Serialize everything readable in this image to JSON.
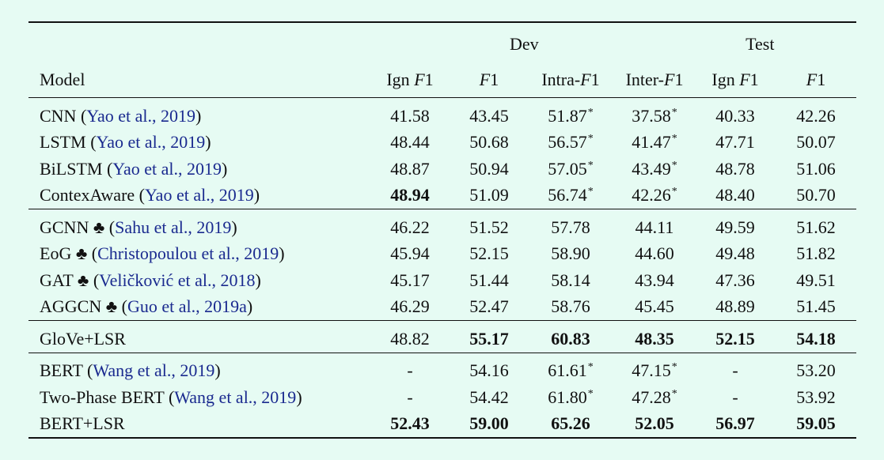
{
  "columns": {
    "model": "Model",
    "group_dev": "Dev",
    "group_test": "Test",
    "sub": [
      "Ign F1",
      "F1",
      "Intra-F1",
      "Inter-F1",
      "Ign F1",
      "F1"
    ]
  },
  "sections": [
    [
      {
        "name": "CNN",
        "cite": "Yao et al., 2019",
        "vals": [
          "41.58",
          "43.45",
          "51.87",
          "37.58",
          "40.33",
          "42.26"
        ],
        "star": [
          false,
          false,
          true,
          true,
          false,
          false
        ],
        "bold": [
          false,
          false,
          false,
          false,
          false,
          false
        ]
      },
      {
        "name": "LSTM",
        "cite": "Yao et al., 2019",
        "vals": [
          "48.44",
          "50.68",
          "56.57",
          "41.47",
          "47.71",
          "50.07"
        ],
        "star": [
          false,
          false,
          true,
          true,
          false,
          false
        ],
        "bold": [
          false,
          false,
          false,
          false,
          false,
          false
        ]
      },
      {
        "name": "BiLSTM",
        "cite": "Yao et al., 2019",
        "vals": [
          "48.87",
          "50.94",
          "57.05",
          "43.49",
          "48.78",
          "51.06"
        ],
        "star": [
          false,
          false,
          true,
          true,
          false,
          false
        ],
        "bold": [
          false,
          false,
          false,
          false,
          false,
          false
        ]
      },
      {
        "name": "ContexAware",
        "cite": "Yao et al., 2019",
        "vals": [
          "48.94",
          "51.09",
          "56.74",
          "42.26",
          "48.40",
          "50.70"
        ],
        "star": [
          false,
          false,
          true,
          true,
          false,
          false
        ],
        "bold": [
          true,
          false,
          false,
          false,
          false,
          false
        ]
      }
    ],
    [
      {
        "name": "GCNN ♣",
        "cite": "Sahu et al., 2019",
        "vals": [
          "46.22",
          "51.52",
          "57.78",
          "44.11",
          "49.59",
          "51.62"
        ],
        "star": [
          false,
          false,
          false,
          false,
          false,
          false
        ],
        "bold": [
          false,
          false,
          false,
          false,
          false,
          false
        ]
      },
      {
        "name": "EoG ♣",
        "cite": "Christopoulou et al., 2019",
        "vals": [
          "45.94",
          "52.15",
          "58.90",
          "44.60",
          "49.48",
          "51.82"
        ],
        "star": [
          false,
          false,
          false,
          false,
          false,
          false
        ],
        "bold": [
          false,
          false,
          false,
          false,
          false,
          false
        ]
      },
      {
        "name": "GAT ♣",
        "cite": "Veličković et al., 2018",
        "vals": [
          "45.17",
          "51.44",
          "58.14",
          "43.94",
          "47.36",
          "49.51"
        ],
        "star": [
          false,
          false,
          false,
          false,
          false,
          false
        ],
        "bold": [
          false,
          false,
          false,
          false,
          false,
          false
        ]
      },
      {
        "name": "AGGCN ♣",
        "cite": "Guo et al., 2019a",
        "vals": [
          "46.29",
          "52.47",
          "58.76",
          "45.45",
          "48.89",
          "51.45"
        ],
        "star": [
          false,
          false,
          false,
          false,
          false,
          false
        ],
        "bold": [
          false,
          false,
          false,
          false,
          false,
          false
        ]
      }
    ],
    [
      {
        "name": "GloVe+LSR",
        "cite": "",
        "vals": [
          "48.82",
          "55.17",
          "60.83",
          "48.35",
          "52.15",
          "54.18"
        ],
        "star": [
          false,
          false,
          false,
          false,
          false,
          false
        ],
        "bold": [
          false,
          true,
          true,
          true,
          true,
          true
        ]
      }
    ],
    [
      {
        "name": "BERT",
        "cite": "Wang et al., 2019",
        "vals": [
          "-",
          "54.16",
          "61.61",
          "47.15",
          "-",
          "53.20"
        ],
        "star": [
          false,
          false,
          true,
          true,
          false,
          false
        ],
        "bold": [
          false,
          false,
          false,
          false,
          false,
          false
        ]
      },
      {
        "name": "Two-Phase BERT",
        "cite": "Wang et al., 2019",
        "vals": [
          "-",
          "54.42",
          "61.80",
          "47.28",
          "-",
          "53.92"
        ],
        "star": [
          false,
          false,
          true,
          true,
          false,
          false
        ],
        "bold": [
          false,
          false,
          false,
          false,
          false,
          false
        ]
      },
      {
        "name": "BERT+LSR",
        "cite": "",
        "vals": [
          "52.43",
          "59.00",
          "65.26",
          "52.05",
          "56.97",
          "59.05"
        ],
        "star": [
          false,
          false,
          false,
          false,
          false,
          false
        ],
        "bold": [
          true,
          true,
          true,
          true,
          true,
          true
        ]
      }
    ]
  ],
  "star_symbol": "*"
}
